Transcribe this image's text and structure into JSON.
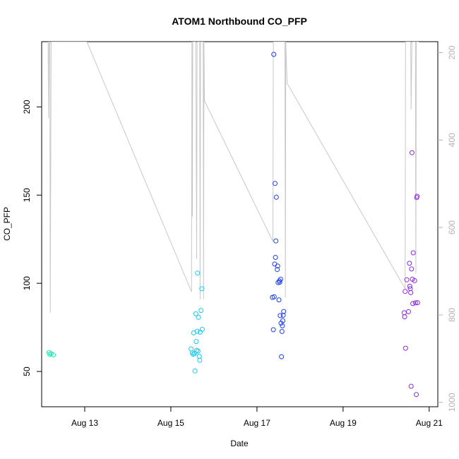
{
  "chart_data": {
    "type": "scatter",
    "title": "ATOM1 Northbound CO_PFP",
    "xlabel": "Date",
    "ylabel": "CO_PFP",
    "x_ticks": [
      "Aug 13",
      "Aug 15",
      "Aug 17",
      "Aug 19",
      "Aug 21"
    ],
    "x_tick_values": [
      13,
      15,
      17,
      19,
      21
    ],
    "xlim": [
      12,
      21.2
    ],
    "y_ticks": [
      50,
      100,
      150,
      200
    ],
    "ylim": [
      30,
      237
    ],
    "y2_ticks": [
      200,
      400,
      600,
      800,
      1000
    ],
    "y2lim": [
      1010,
      175
    ],
    "y2_reversed": true,
    "grid": false,
    "legend": "none",
    "colors": {
      "line": "#c8c8c8",
      "right_axis": "#b3b3b3",
      "axis": "#000000"
    },
    "series": [
      {
        "color": "#1de9b6",
        "points": [
          [
            12.17,
            60.8
          ],
          [
            12.19,
            59.7
          ],
          [
            12.22,
            60.1
          ],
          [
            12.27,
            59.4
          ]
        ]
      },
      {
        "color": "#1ec8f0",
        "points": [
          [
            15.47,
            62.8
          ],
          [
            15.5,
            60.5
          ],
          [
            15.52,
            59.8
          ],
          [
            15.53,
            71.9
          ],
          [
            15.55,
            60.2
          ],
          [
            15.56,
            50.3
          ],
          [
            15.58,
            82.7
          ],
          [
            15.59,
            67.0
          ],
          [
            15.6,
            62.0
          ],
          [
            15.61,
            72.8
          ],
          [
            15.62,
            105.8
          ],
          [
            15.63,
            61.6
          ],
          [
            15.64,
            80.7
          ],
          [
            15.66,
            58.6
          ],
          [
            15.67,
            56.3
          ],
          [
            15.68,
            72.3
          ],
          [
            15.7,
            84.6
          ],
          [
            15.72,
            96.9
          ],
          [
            15.73,
            73.9
          ]
        ]
      },
      {
        "color": "#2040f0",
        "points": [
          [
            17.36,
            92.0
          ],
          [
            17.38,
            73.7
          ],
          [
            17.39,
            229.8
          ],
          [
            17.4,
            92.4
          ],
          [
            17.41,
            110.9
          ],
          [
            17.42,
            156.6
          ],
          [
            17.43,
            114.7
          ],
          [
            17.44,
            124.0
          ],
          [
            17.45,
            148.8
          ],
          [
            17.47,
            107.8
          ],
          [
            17.48,
            109.8
          ],
          [
            17.49,
            100.4
          ],
          [
            17.51,
            90.6
          ],
          [
            17.52,
            101.4
          ],
          [
            17.53,
            100.6
          ],
          [
            17.54,
            81.7
          ],
          [
            17.55,
            102.3
          ],
          [
            17.56,
            77.4
          ],
          [
            17.57,
            58.4
          ],
          [
            17.58,
            72.7
          ],
          [
            17.59,
            75.9
          ],
          [
            17.6,
            78.8
          ],
          [
            17.61,
            81.9
          ],
          [
            17.62,
            84.0
          ]
        ]
      },
      {
        "color": "#8a2be2",
        "points": [
          [
            20.42,
            83.3
          ],
          [
            20.43,
            81.0
          ],
          [
            20.44,
            95.4
          ],
          [
            20.45,
            63.2
          ],
          [
            20.48,
            102.0
          ],
          [
            20.52,
            83.9
          ],
          [
            20.54,
            111.3
          ],
          [
            20.55,
            98.3
          ],
          [
            20.56,
            97.0
          ],
          [
            20.57,
            94.7
          ],
          [
            20.58,
            41.6
          ],
          [
            20.59,
            108.1
          ],
          [
            20.6,
            174.0
          ],
          [
            20.61,
            102.3
          ],
          [
            20.62,
            88.5
          ],
          [
            20.63,
            117.3
          ],
          [
            20.66,
            101.5
          ],
          [
            20.68,
            88.9
          ],
          [
            20.7,
            36.9
          ],
          [
            20.71,
            148.6
          ],
          [
            20.72,
            149.3
          ],
          [
            20.73,
            89.0
          ]
        ]
      }
    ],
    "line_series": {
      "color": "#c8c8c8",
      "axis": "right",
      "points": [
        [
          12.15,
          175
        ],
        [
          12.16,
          350
        ],
        [
          12.17,
          175
        ],
        [
          12.19,
          175
        ],
        [
          12.2,
          795
        ],
        [
          12.22,
          175
        ],
        [
          12.25,
          175
        ],
        [
          12.27,
          175
        ],
        [
          12.3,
          175
        ],
        [
          12.35,
          175
        ],
        [
          12.41,
          175
        ],
        [
          13.05,
          175
        ],
        [
          15.48,
          747
        ],
        [
          15.49,
          175
        ],
        [
          15.5,
          575
        ],
        [
          15.51,
          175
        ],
        [
          15.56,
          175
        ],
        [
          15.58,
          175
        ],
        [
          15.6,
          672
        ],
        [
          15.61,
          175
        ],
        [
          15.64,
          175
        ],
        [
          15.67,
          175
        ],
        [
          15.68,
          765
        ],
        [
          15.69,
          175
        ],
        [
          15.72,
          175
        ],
        [
          15.75,
          175
        ],
        [
          15.76,
          765
        ],
        [
          15.77,
          175
        ],
        [
          15.78,
          310
        ],
        [
          17.37,
          632
        ],
        [
          17.38,
          175
        ],
        [
          17.39,
          175
        ],
        [
          17.41,
          175
        ],
        [
          17.43,
          175
        ],
        [
          17.45,
          175
        ],
        [
          17.47,
          175
        ],
        [
          17.49,
          175
        ],
        [
          17.51,
          175
        ],
        [
          17.53,
          175
        ],
        [
          17.55,
          175
        ],
        [
          17.57,
          175
        ],
        [
          17.59,
          175
        ],
        [
          17.61,
          175
        ],
        [
          17.62,
          175
        ],
        [
          17.63,
          175
        ],
        [
          17.65,
          175
        ],
        [
          17.66,
          760
        ],
        [
          17.67,
          175
        ],
        [
          17.7,
          270
        ],
        [
          20.44,
          740
        ],
        [
          20.45,
          175
        ],
        [
          20.46,
          175
        ],
        [
          20.48,
          175
        ],
        [
          20.5,
          175
        ],
        [
          20.52,
          175
        ],
        [
          20.55,
          175
        ],
        [
          20.57,
          175
        ],
        [
          20.58,
          330
        ],
        [
          20.6,
          175
        ],
        [
          20.62,
          175
        ],
        [
          20.64,
          175
        ],
        [
          20.66,
          175
        ],
        [
          20.68,
          175
        ],
        [
          20.69,
          705
        ],
        [
          20.7,
          175
        ],
        [
          20.72,
          175
        ],
        [
          20.73,
          175
        ],
        [
          20.76,
          175
        ]
      ]
    }
  }
}
